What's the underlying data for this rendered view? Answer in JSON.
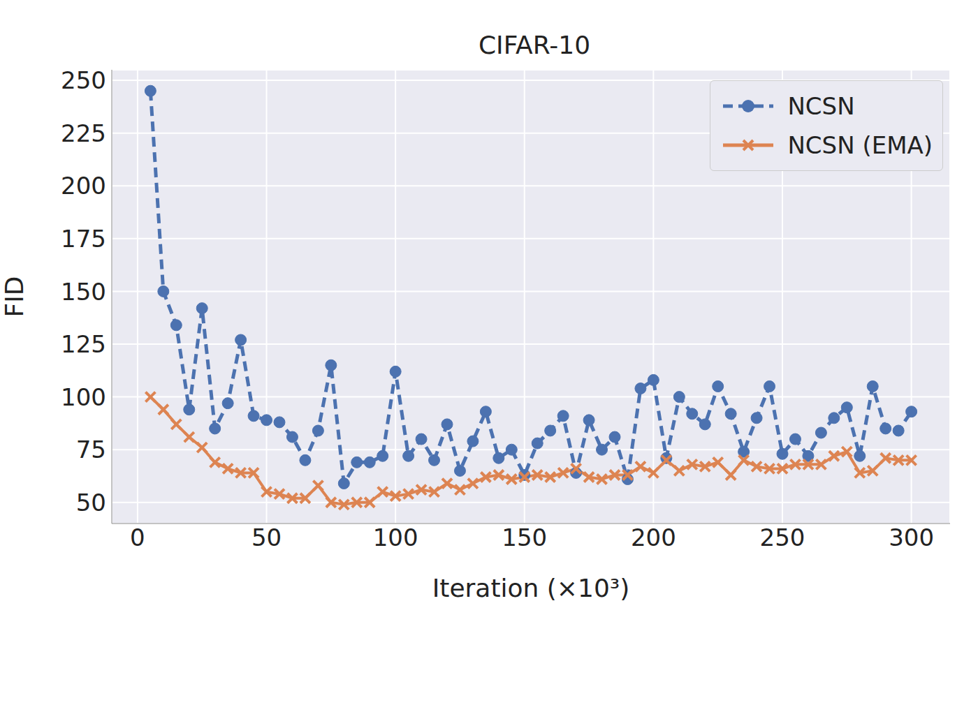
{
  "chart_data": {
    "type": "line",
    "title": "CIFAR-10",
    "x_label": "Iteration (×10³)",
    "y_label": "FID",
    "x": [
      5,
      10,
      15,
      20,
      25,
      30,
      35,
      40,
      45,
      50,
      55,
      60,
      65,
      70,
      75,
      80,
      85,
      90,
      95,
      100,
      105,
      110,
      115,
      120,
      125,
      130,
      135,
      140,
      145,
      150,
      155,
      160,
      165,
      170,
      175,
      180,
      185,
      190,
      195,
      200,
      205,
      210,
      215,
      220,
      225,
      230,
      235,
      240,
      245,
      250,
      255,
      260,
      265,
      270,
      275,
      280,
      285,
      290,
      295,
      300
    ],
    "series": [
      {
        "name": "NCSN",
        "color": "#4c72b0",
        "marker": "circle",
        "line_style": "dashed",
        "values": [
          245,
          150,
          134,
          94,
          142,
          85,
          97,
          127,
          91,
          89,
          88,
          81,
          70,
          84,
          115,
          59,
          69,
          69,
          72,
          112,
          72,
          80,
          70,
          87,
          65,
          79,
          93,
          71,
          75,
          63,
          78,
          84,
          91,
          64,
          89,
          75,
          81,
          61,
          104,
          108,
          71,
          100,
          92,
          87,
          105,
          92,
          74,
          90,
          105,
          73,
          80,
          72,
          83,
          90,
          95,
          72,
          105,
          85,
          84,
          93
        ]
      },
      {
        "name": "NCSN (EMA)",
        "color": "#dd8452",
        "marker": "x",
        "line_style": "solid",
        "values": [
          100,
          94,
          87,
          81,
          76,
          69,
          66,
          64,
          64,
          55,
          54,
          52,
          52,
          58,
          50,
          49,
          50,
          50,
          55,
          53,
          54,
          56,
          55,
          59,
          56,
          59,
          62,
          63,
          61,
          62,
          63,
          62,
          64,
          66,
          62,
          61,
          63,
          63,
          67,
          64,
          70,
          65,
          68,
          67,
          69,
          63,
          70,
          67,
          66,
          66,
          68,
          68,
          68,
          72,
          74,
          64,
          65,
          71,
          70,
          70
        ]
      }
    ],
    "xlim": [
      -10,
      315
    ],
    "xticks": [
      0,
      50,
      100,
      150,
      200,
      250,
      300
    ],
    "ylim": [
      40,
      255
    ],
    "yticks": [
      50,
      75,
      100,
      125,
      150,
      175,
      200,
      225,
      250
    ],
    "grid": true,
    "legend": "upper right"
  }
}
